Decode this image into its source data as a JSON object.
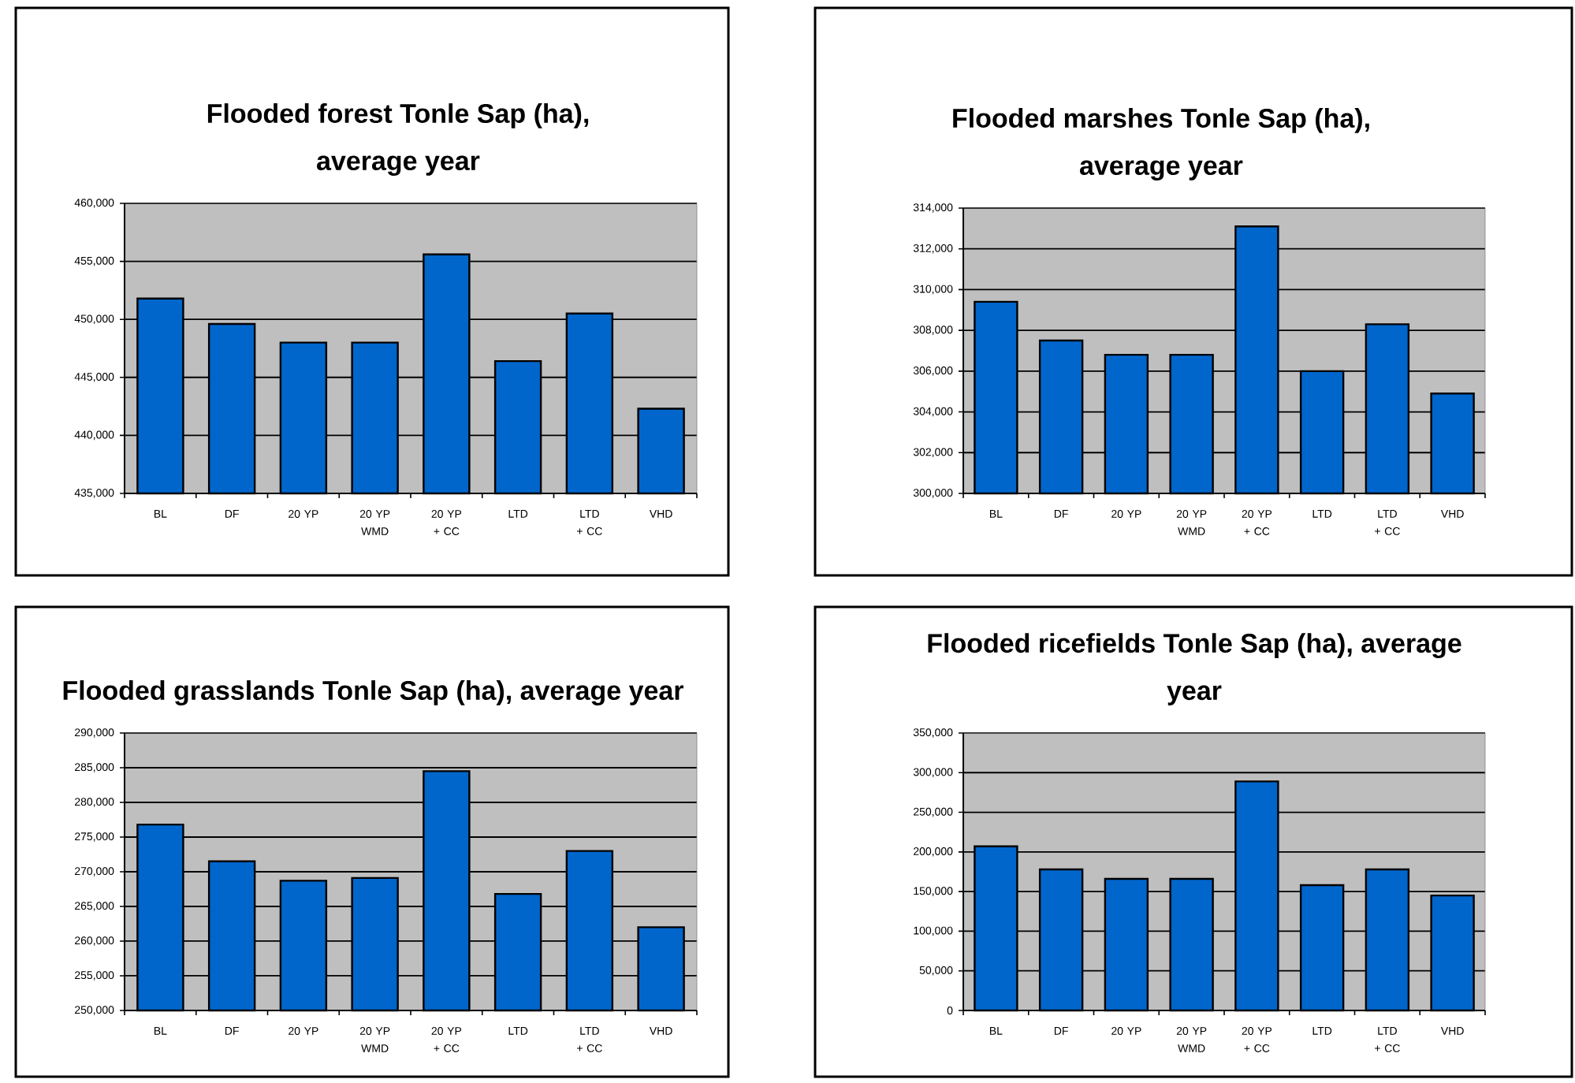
{
  "chart_data": [
    {
      "type": "bar",
      "title": "Flooded forest Tonle Sap (ha), average year",
      "categories": [
        "BL",
        "DF",
        "20 YP",
        "20 YP WMD",
        "20 YP + CC",
        "LTD",
        "LTD + CC",
        "VHD"
      ],
      "values": [
        451800,
        449600,
        448000,
        448000,
        455600,
        446400,
        450500,
        442300
      ],
      "color": "#0066cc",
      "ylim": [
        435000,
        460000
      ],
      "yticks": [
        {
          "value": 435000,
          "label": "435,000"
        },
        {
          "value": 440000,
          "label": "440,000"
        },
        {
          "value": 445000,
          "label": "445,000"
        },
        {
          "value": 450000,
          "label": "450,000"
        },
        {
          "value": 455000,
          "label": "455,000"
        },
        {
          "value": 460000,
          "label": "460,000"
        }
      ],
      "grid": "y"
    },
    {
      "type": "bar",
      "title": "Flooded marshes Tonle Sap (ha), average year",
      "categories": [
        "BL",
        "DF",
        "20 YP",
        "20 YP WMD",
        "20 YP + CC",
        "LTD",
        "LTD + CC",
        "VHD"
      ],
      "values": [
        309400,
        307500,
        306800,
        306800,
        313100,
        306000,
        308300,
        304900
      ],
      "color": "#0066cc",
      "ylim": [
        300000,
        314000
      ],
      "yticks": [
        {
          "value": 300000,
          "label": "300,000"
        },
        {
          "value": 302000,
          "label": "302,000"
        },
        {
          "value": 304000,
          "label": "304,000"
        },
        {
          "value": 306000,
          "label": "306,000"
        },
        {
          "value": 308000,
          "label": "308,000"
        },
        {
          "value": 310000,
          "label": "310,000"
        },
        {
          "value": 312000,
          "label": "312,000"
        },
        {
          "value": 314000,
          "label": "314,000"
        }
      ],
      "grid": "y"
    },
    {
      "type": "bar",
      "title": "Flooded grasslands Tonle Sap (ha), average year",
      "categories": [
        "BL",
        "DF",
        "20 YP",
        "20 YP WMD",
        "20 YP + CC",
        "LTD",
        "LTD + CC",
        "VHD"
      ],
      "values": [
        276800,
        271500,
        268700,
        269100,
        284500,
        266800,
        273000,
        262000
      ],
      "color": "#0066cc",
      "ylim": [
        250000,
        290000
      ],
      "yticks": [
        {
          "value": 250000,
          "label": "250,000"
        },
        {
          "value": 255000,
          "label": "255,000"
        },
        {
          "value": 260000,
          "label": "260,000"
        },
        {
          "value": 265000,
          "label": "265,000"
        },
        {
          "value": 270000,
          "label": "270,000"
        },
        {
          "value": 275000,
          "label": "275,000"
        },
        {
          "value": 280000,
          "label": "280,000"
        },
        {
          "value": 285000,
          "label": "285,000"
        },
        {
          "value": 290000,
          "label": "290,000"
        }
      ],
      "grid": "y"
    },
    {
      "type": "bar",
      "title": "Flooded ricefields Tonle Sap (ha), average year",
      "categories": [
        "BL",
        "DF",
        "20 YP",
        "20 YP WMD",
        "20 YP + CC",
        "LTD",
        "LTD + CC",
        "VHD"
      ],
      "values": [
        207000,
        178000,
        166000,
        166000,
        289000,
        158000,
        178000,
        145000
      ],
      "color": "#0066cc",
      "ylim": [
        0,
        350000
      ],
      "yticks": [
        0,
        {
          "value": 50000,
          "label": "50,000"
        },
        {
          "value": 100000,
          "label": "100,000"
        },
        {
          "value": 150000,
          "label": "150,000"
        },
        {
          "value": 200000,
          "label": "200,000"
        },
        {
          "value": 250000,
          "label": "250,000"
        },
        {
          "value": 300000,
          "label": "300,000"
        },
        {
          "value": 350000,
          "label": "350,000"
        }
      ],
      "grid": "y"
    }
  ]
}
